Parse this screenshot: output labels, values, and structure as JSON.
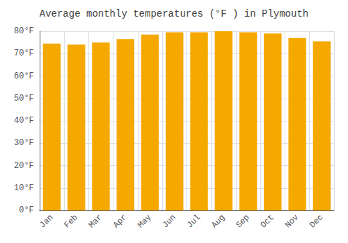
{
  "chart_data": {
    "type": "bar",
    "title": "Average monthly temperatures (°F ) in Plymouth",
    "categories": [
      "Jan",
      "Feb",
      "Mar",
      "Apr",
      "May",
      "Jun",
      "Jul",
      "Aug",
      "Sep",
      "Oct",
      "Nov",
      "Dec"
    ],
    "values": [
      74.5,
      74.0,
      75.0,
      76.5,
      78.5,
      79.5,
      79.5,
      80.0,
      79.5,
      79.0,
      77.0,
      75.5
    ],
    "color": "#F5A800",
    "ylim": [
      0,
      80
    ],
    "yticks": [
      {
        "value": 0,
        "label": "0°F"
      },
      {
        "value": 10,
        "label": "10°F"
      },
      {
        "value": 20,
        "label": "20°F"
      },
      {
        "value": 30,
        "label": "30°F"
      },
      {
        "value": 40,
        "label": "40°F"
      },
      {
        "value": 50,
        "label": "50°F"
      },
      {
        "value": 60,
        "label": "60°F"
      },
      {
        "value": 70,
        "label": "70°F"
      },
      {
        "value": 80,
        "label": "80°F"
      }
    ],
    "grid": true
  }
}
